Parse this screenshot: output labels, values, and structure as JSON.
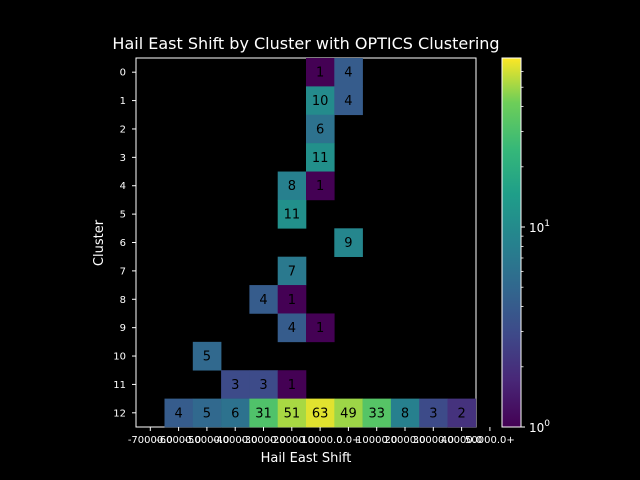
{
  "chart_data": {
    "type": "heatmap",
    "title": "Hail East Shift by Cluster with OPTICS Clustering",
    "xlabel": "Hail East Shift",
    "ylabel": "Cluster",
    "x_tick_labels": [
      "-70000.0",
      "-60000.0",
      "-50000.0",
      "-40000.0",
      "-30000.0",
      "-20000.0",
      "-10000.0",
      "0.0+",
      "10000.0",
      "20000.0",
      "30000.0",
      "40000.0",
      "50000.0+"
    ],
    "y_tick_labels": [
      "0",
      "1",
      "2",
      "3",
      "4",
      "5",
      "6",
      "7",
      "8",
      "9",
      "10",
      "11",
      "12"
    ],
    "n_columns": 11,
    "colormap": "viridis",
    "color_scale": "log",
    "color_range": [
      1,
      70
    ],
    "colorbar_ticks": [
      {
        "value": 1,
        "base": "10",
        "exp": "0"
      },
      {
        "value": 10,
        "base": "10",
        "exp": "1"
      }
    ],
    "cells": [
      {
        "row": 0,
        "col": 5,
        "value": 1
      },
      {
        "row": 0,
        "col": 6,
        "value": 4
      },
      {
        "row": 1,
        "col": 5,
        "value": 10
      },
      {
        "row": 1,
        "col": 6,
        "value": 4
      },
      {
        "row": 2,
        "col": 5,
        "value": 6
      },
      {
        "row": 3,
        "col": 5,
        "value": 11
      },
      {
        "row": 4,
        "col": 4,
        "value": 8
      },
      {
        "row": 4,
        "col": 5,
        "value": 1
      },
      {
        "row": 5,
        "col": 4,
        "value": 11
      },
      {
        "row": 6,
        "col": 6,
        "value": 9
      },
      {
        "row": 7,
        "col": 4,
        "value": 7
      },
      {
        "row": 8,
        "col": 3,
        "value": 4
      },
      {
        "row": 8,
        "col": 4,
        "value": 1
      },
      {
        "row": 9,
        "col": 4,
        "value": 4
      },
      {
        "row": 9,
        "col": 5,
        "value": 1
      },
      {
        "row": 10,
        "col": 1,
        "value": 5
      },
      {
        "row": 11,
        "col": 2,
        "value": 3
      },
      {
        "row": 11,
        "col": 3,
        "value": 3
      },
      {
        "row": 11,
        "col": 4,
        "value": 1
      },
      {
        "row": 12,
        "col": 0,
        "value": 4
      },
      {
        "row": 12,
        "col": 1,
        "value": 5
      },
      {
        "row": 12,
        "col": 2,
        "value": 6
      },
      {
        "row": 12,
        "col": 3,
        "value": 31
      },
      {
        "row": 12,
        "col": 4,
        "value": 51
      },
      {
        "row": 12,
        "col": 5,
        "value": 63
      },
      {
        "row": 12,
        "col": 6,
        "value": 49
      },
      {
        "row": 12,
        "col": 7,
        "value": 33
      },
      {
        "row": 12,
        "col": 8,
        "value": 8
      },
      {
        "row": 12,
        "col": 9,
        "value": 3
      },
      {
        "row": 12,
        "col": 10,
        "value": 2
      }
    ]
  }
}
